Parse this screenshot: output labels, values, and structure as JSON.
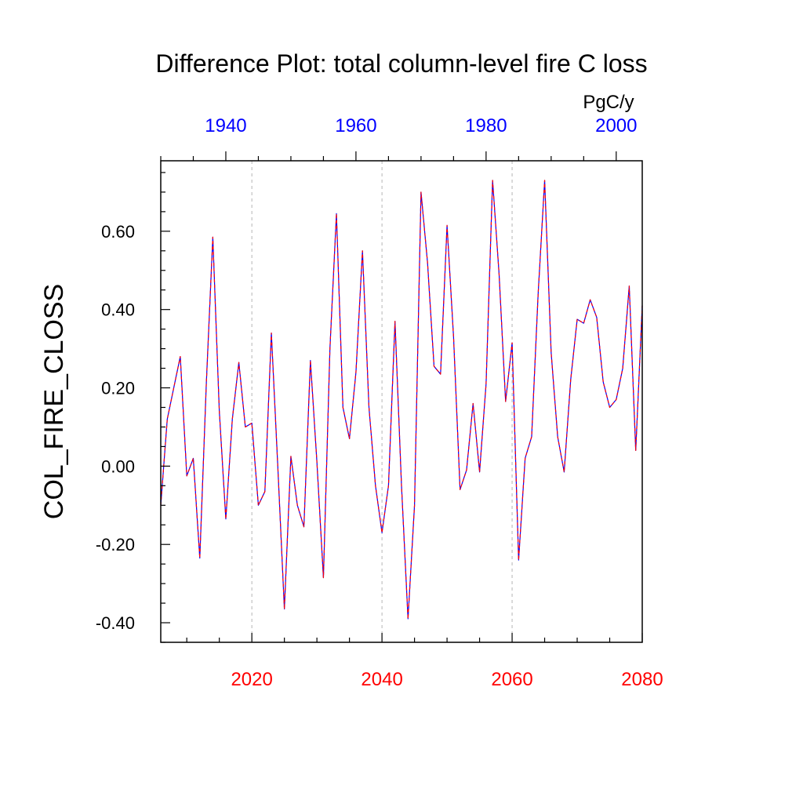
{
  "chart_data": {
    "type": "line",
    "title": "Difference Plot: total column-level fire C loss",
    "units_label": "PgC/y",
    "ylabel": "COL_FIRE_CLOSS",
    "xlabel": "",
    "ylim": [
      -0.45,
      0.78
    ],
    "yticks": [
      -0.4,
      -0.2,
      0.0,
      0.2,
      0.4,
      0.6
    ],
    "ytick_labels": [
      "-0.40",
      "-0.20",
      "0.00",
      "0.20",
      "0.40",
      "0.60"
    ],
    "grid": "vertical dashed at bottom-axis major ticks",
    "axes": {
      "bottom": {
        "range": [
          2006,
          2080
        ],
        "ticks": [
          2020,
          2040,
          2060,
          2080
        ],
        "tick_labels": [
          "2020",
          "2040",
          "2060",
          "2080"
        ],
        "color": "#ff0000"
      },
      "top": {
        "range": [
          1930,
          2004
        ],
        "ticks": [
          1940,
          1960,
          1980,
          2000
        ],
        "tick_labels": [
          "1940",
          "1960",
          "1980",
          "2000"
        ],
        "color": "#0000ff"
      }
    },
    "series": [
      {
        "line_color": "#0000ff",
        "x": [
          2006,
          2007,
          2008,
          2009,
          2010,
          2011,
          2012,
          2013,
          2014,
          2015,
          2016,
          2017,
          2018,
          2019,
          2020,
          2021,
          2022,
          2023,
          2024,
          2025,
          2026,
          2027,
          2028,
          2029,
          2030,
          2031,
          2032,
          2033,
          2034,
          2035,
          2036,
          2037,
          2038,
          2039,
          2040,
          2041,
          2042,
          2043,
          2044,
          2045,
          2046,
          2047,
          2048,
          2049,
          2050,
          2051,
          2052,
          2053,
          2054,
          2055,
          2056,
          2057,
          2058,
          2059,
          2060,
          2061,
          2062,
          2063,
          2064,
          2065,
          2066,
          2067,
          2068,
          2069,
          2070,
          2071,
          2072,
          2073,
          2074,
          2075,
          2076,
          2077,
          2078,
          2079,
          2080
        ],
        "y": [
          -0.1,
          0.12,
          0.2,
          0.28,
          -0.025,
          0.02,
          -0.235,
          0.21,
          0.585,
          0.14,
          -0.135,
          0.12,
          0.265,
          0.1,
          0.11,
          -0.1,
          -0.065,
          0.34,
          -0.005,
          -0.365,
          0.025,
          -0.1,
          -0.155,
          0.27,
          0.01,
          -0.285,
          0.3,
          0.645,
          0.15,
          0.07,
          0.24,
          0.55,
          0.15,
          -0.05,
          -0.17,
          -0.05,
          0.37,
          -0.05,
          -0.39,
          -0.1,
          0.7,
          0.52,
          0.255,
          0.235,
          0.615,
          0.33,
          -0.06,
          -0.01,
          0.16,
          -0.015,
          0.21,
          0.73,
          0.49,
          0.165,
          0.315,
          -0.24,
          0.02,
          0.075,
          0.44,
          0.73,
          0.29,
          0.075,
          -0.015,
          0.22,
          0.375,
          0.365,
          0.425,
          0.38,
          0.215,
          0.15,
          0.17,
          0.25,
          0.46,
          0.04,
          0.41
        ]
      },
      {
        "line_color": "#ff0000",
        "x": [
          2006,
          2007,
          2008,
          2009,
          2010,
          2011,
          2012,
          2013,
          2014,
          2015,
          2016,
          2017,
          2018,
          2019,
          2020,
          2021,
          2022,
          2023,
          2024,
          2025,
          2026,
          2027,
          2028,
          2029,
          2030,
          2031,
          2032,
          2033,
          2034,
          2035,
          2036,
          2037,
          2038,
          2039,
          2040,
          2041,
          2042,
          2043,
          2044,
          2045,
          2046,
          2047,
          2048,
          2049,
          2050,
          2051,
          2052,
          2053,
          2054,
          2055,
          2056,
          2057,
          2058,
          2059,
          2060,
          2061,
          2062,
          2063,
          2064,
          2065,
          2066,
          2067,
          2068,
          2069,
          2070,
          2071,
          2072,
          2073,
          2074,
          2075,
          2076,
          2077,
          2078,
          2079,
          2080
        ],
        "y": [
          -0.1,
          0.12,
          0.2,
          0.28,
          -0.025,
          0.02,
          -0.235,
          0.21,
          0.585,
          0.14,
          -0.135,
          0.12,
          0.265,
          0.1,
          0.11,
          -0.1,
          -0.065,
          0.34,
          -0.005,
          -0.365,
          0.025,
          -0.1,
          -0.155,
          0.27,
          0.01,
          -0.285,
          0.3,
          0.645,
          0.15,
          0.07,
          0.24,
          0.55,
          0.15,
          -0.05,
          -0.17,
          -0.05,
          0.37,
          -0.05,
          -0.39,
          -0.1,
          0.7,
          0.52,
          0.255,
          0.235,
          0.615,
          0.33,
          -0.06,
          -0.01,
          0.16,
          -0.015,
          0.21,
          0.73,
          0.49,
          0.165,
          0.315,
          -0.24,
          0.02,
          0.075,
          0.44,
          0.73,
          0.29,
          0.075,
          -0.015,
          0.22,
          0.375,
          0.365,
          0.425,
          0.38,
          0.215,
          0.15,
          0.17,
          0.25,
          0.46,
          0.04,
          0.41
        ]
      }
    ]
  }
}
